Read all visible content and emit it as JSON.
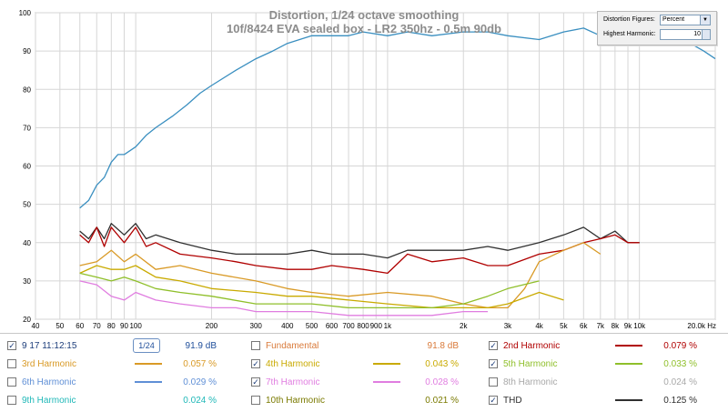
{
  "title": {
    "line1": "Distortion, 1/24 octave smoothing",
    "line2": "10f/8424 EVA sealed box - LR2 350hz - 0.5m 90db"
  },
  "controls": {
    "distortion_figures_label": "Distortion Figures:",
    "distortion_figures_value": "Percent",
    "highest_harmonic_label": "Highest Harmonic:",
    "highest_harmonic_value": "10"
  },
  "legend": {
    "measurement": {
      "name": "9 17 11:12:15",
      "smoothing": "1/24",
      "value": "91.9 dB",
      "checked": true
    },
    "items": [
      {
        "name": "Fundamental",
        "value": "91.8 dB",
        "color": "#d97a3a",
        "checked": false,
        "swatch": false
      },
      {
        "name": "2nd Harmonic",
        "value": "0.079 %",
        "color": "#b00000",
        "checked": true,
        "swatch": true
      },
      {
        "name": "3rd Harmonic",
        "value": "0.057 %",
        "color": "#d99a26",
        "checked": false,
        "swatch": true
      },
      {
        "name": "4th Harmonic",
        "value": "0.043 %",
        "color": "#c9aa00",
        "checked": true,
        "swatch": true
      },
      {
        "name": "5th Harmonic",
        "value": "0.033 %",
        "color": "#8fbf2a",
        "checked": true,
        "swatch": true
      },
      {
        "name": "6th Harmonic",
        "value": "0.029 %",
        "color": "#5f8fd6",
        "checked": false,
        "swatch": true
      },
      {
        "name": "7th Harmonic",
        "value": "0.028 %",
        "color": "#e07de0",
        "checked": true,
        "swatch": true
      },
      {
        "name": "8th Harmonic",
        "value": "0.024 %",
        "color": "#a8a8a8",
        "checked": false,
        "swatch": false
      },
      {
        "name": "9th Harmonic",
        "value": "0.024 %",
        "color": "#20b8b8",
        "checked": false,
        "swatch": false
      },
      {
        "name": "10th Harmonic",
        "value": "0.021 %",
        "color": "#7a7a00",
        "checked": false,
        "swatch": false
      },
      {
        "name": "THD",
        "value": "0.125 %",
        "color": "#303030",
        "checked": true,
        "swatch": true
      }
    ]
  },
  "chart_data": {
    "type": "line",
    "title": "Distortion, 1/24 octave smoothing",
    "subtitle": "10f/8424 EVA sealed box - LR2 350hz - 0.5m 90db",
    "x_scale": "log",
    "xlim": [
      40,
      20000
    ],
    "ylim": [
      20,
      100
    ],
    "x_ticks": [
      {
        "v": 40,
        "l": "40"
      },
      {
        "v": 50,
        "l": "50"
      },
      {
        "v": 60,
        "l": "60"
      },
      {
        "v": 70,
        "l": "70"
      },
      {
        "v": 80,
        "l": "80"
      },
      {
        "v": 90,
        "l": "90"
      },
      {
        "v": 100,
        "l": "100"
      },
      {
        "v": 200,
        "l": "200"
      },
      {
        "v": 300,
        "l": "300"
      },
      {
        "v": 400,
        "l": "400"
      },
      {
        "v": 500,
        "l": "500"
      },
      {
        "v": 600,
        "l": "600"
      },
      {
        "v": 700,
        "l": "700"
      },
      {
        "v": 800,
        "l": "800"
      },
      {
        "v": 900,
        "l": "900"
      },
      {
        "v": 1000,
        "l": "1k"
      },
      {
        "v": 2000,
        "l": "2k"
      },
      {
        "v": 3000,
        "l": "3k"
      },
      {
        "v": 4000,
        "l": "4k"
      },
      {
        "v": 5000,
        "l": "5k"
      },
      {
        "v": 6000,
        "l": "6k"
      },
      {
        "v": 7000,
        "l": "7k"
      },
      {
        "v": 8000,
        "l": "8k"
      },
      {
        "v": 9000,
        "l": "9k"
      },
      {
        "v": 10000,
        "l": "10k"
      },
      {
        "v": 20000,
        "l": "20.0k Hz"
      }
    ],
    "y_ticks": [
      20,
      30,
      40,
      50,
      60,
      70,
      80,
      90,
      100
    ],
    "grid": true,
    "series": [
      {
        "name": "Fundamental",
        "color": "#3a8fc0",
        "x": [
          60,
          65,
          70,
          75,
          80,
          85,
          90,
          100,
          110,
          120,
          140,
          160,
          180,
          200,
          250,
          300,
          350,
          400,
          500,
          600,
          700,
          800,
          1000,
          1200,
          1500,
          2000,
          2500,
          3000,
          4000,
          5000,
          6000,
          7000,
          8000,
          10000,
          12000,
          15000,
          18000,
          20000
        ],
        "y": [
          49,
          51,
          55,
          57,
          61,
          63,
          63,
          65,
          68,
          70,
          73,
          76,
          79,
          81,
          85,
          88,
          90,
          92,
          94,
          94,
          94,
          95,
          94,
          95,
          94,
          95,
          95,
          94,
          93,
          95,
          96,
          94,
          95,
          95,
          94,
          93,
          90,
          88
        ]
      },
      {
        "name": "THD",
        "color": "#303030",
        "x": [
          60,
          65,
          70,
          75,
          80,
          90,
          100,
          110,
          120,
          150,
          200,
          250,
          300,
          400,
          500,
          600,
          800,
          1000,
          1200,
          1500,
          2000,
          2500,
          3000,
          4000,
          5000,
          6000,
          7000,
          8000,
          9000,
          10000
        ],
        "y": [
          43,
          41,
          44,
          41,
          45,
          42,
          45,
          41,
          42,
          40,
          38,
          37,
          37,
          37,
          38,
          37,
          37,
          36,
          38,
          38,
          38,
          39,
          38,
          40,
          42,
          44,
          41,
          43,
          40,
          40
        ]
      },
      {
        "name": "2nd Harmonic",
        "color": "#b00000",
        "x": [
          60,
          65,
          70,
          75,
          80,
          90,
          100,
          110,
          120,
          150,
          200,
          250,
          300,
          400,
          500,
          600,
          800,
          1000,
          1200,
          1500,
          2000,
          2500,
          3000,
          4000,
          5000,
          6000,
          7000,
          8000,
          9000,
          10000
        ],
        "y": [
          42,
          40,
          44,
          39,
          44,
          40,
          44,
          39,
          40,
          37,
          36,
          35,
          34,
          33,
          33,
          34,
          33,
          32,
          37,
          35,
          36,
          34,
          34,
          37,
          38,
          40,
          41,
          42,
          40,
          40
        ]
      },
      {
        "name": "3rd Harmonic",
        "color": "#d99a26",
        "x": [
          60,
          70,
          80,
          90,
          100,
          120,
          150,
          200,
          300,
          400,
          500,
          700,
          1000,
          1500,
          2000,
          2500,
          3000,
          3500,
          4000,
          5000,
          6000,
          7000
        ],
        "y": [
          34,
          35,
          38,
          35,
          37,
          33,
          34,
          32,
          30,
          28,
          27,
          26,
          27,
          26,
          24,
          23,
          23,
          28,
          35,
          38,
          40,
          37
        ]
      },
      {
        "name": "4th Harmonic",
        "color": "#c9aa00",
        "x": [
          60,
          70,
          80,
          90,
          100,
          120,
          150,
          200,
          300,
          400,
          500,
          700,
          1000,
          1500,
          2000,
          2500,
          3000,
          4000,
          5000
        ],
        "y": [
          32,
          34,
          33,
          33,
          34,
          31,
          30,
          28,
          27,
          26,
          26,
          25,
          24,
          23,
          23,
          23,
          24,
          27,
          25
        ]
      },
      {
        "name": "5th Harmonic",
        "color": "#8fbf2a",
        "x": [
          60,
          70,
          80,
          90,
          100,
          120,
          150,
          200,
          300,
          400,
          500,
          700,
          1000,
          1500,
          2000,
          2500,
          3000,
          4000
        ],
        "y": [
          32,
          31,
          30,
          31,
          30,
          28,
          27,
          26,
          24,
          24,
          24,
          23,
          23,
          23,
          24,
          26,
          28,
          30
        ]
      },
      {
        "name": "7th Harmonic",
        "color": "#e07de0",
        "x": [
          60,
          70,
          80,
          90,
          100,
          120,
          150,
          200,
          250,
          300,
          400,
          500,
          700,
          1000,
          1500,
          2000,
          2500
        ],
        "y": [
          30,
          29,
          26,
          25,
          27,
          25,
          24,
          23,
          23,
          22,
          22,
          22,
          21,
          21,
          21,
          22,
          22
        ]
      }
    ]
  }
}
